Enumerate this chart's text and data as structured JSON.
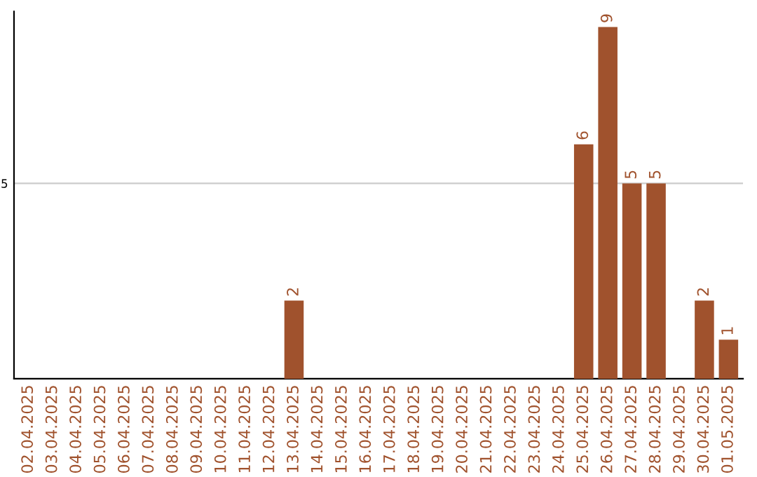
{
  "chart_data": {
    "type": "bar",
    "categories": [
      "02.04.2025",
      "03.04.2025",
      "04.04.2025",
      "05.04.2025",
      "06.04.2025",
      "07.04.2025",
      "08.04.2025",
      "09.04.2025",
      "10.04.2025",
      "11.04.2025",
      "12.04.2025",
      "13.04.2025",
      "14.04.2025",
      "15.04.2025",
      "16.04.2025",
      "17.04.2025",
      "18.04.2025",
      "19.04.2025",
      "20.04.2025",
      "21.04.2025",
      "22.04.2025",
      "23.04.2025",
      "24.04.2025",
      "25.04.2025",
      "26.04.2025",
      "27.04.2025",
      "28.04.2025",
      "29.04.2025",
      "30.04.2025",
      "01.05.2025"
    ],
    "values": [
      0,
      0,
      0,
      0,
      0,
      0,
      0,
      0,
      0,
      0,
      0,
      2,
      0,
      0,
      0,
      0,
      0,
      0,
      0,
      0,
      0,
      0,
      0,
      6,
      9,
      5,
      5,
      0,
      2,
      1
    ],
    "value_labels": [
      null,
      null,
      null,
      null,
      null,
      null,
      null,
      null,
      null,
      null,
      null,
      "2",
      null,
      null,
      null,
      null,
      null,
      null,
      null,
      null,
      null,
      null,
      null,
      "6",
      "9",
      "5",
      "5",
      null,
      "2",
      "1"
    ],
    "color": "#a0522d",
    "ylim": [
      0,
      9.4
    ],
    "yticks": [
      5
    ],
    "grid": "y"
  }
}
